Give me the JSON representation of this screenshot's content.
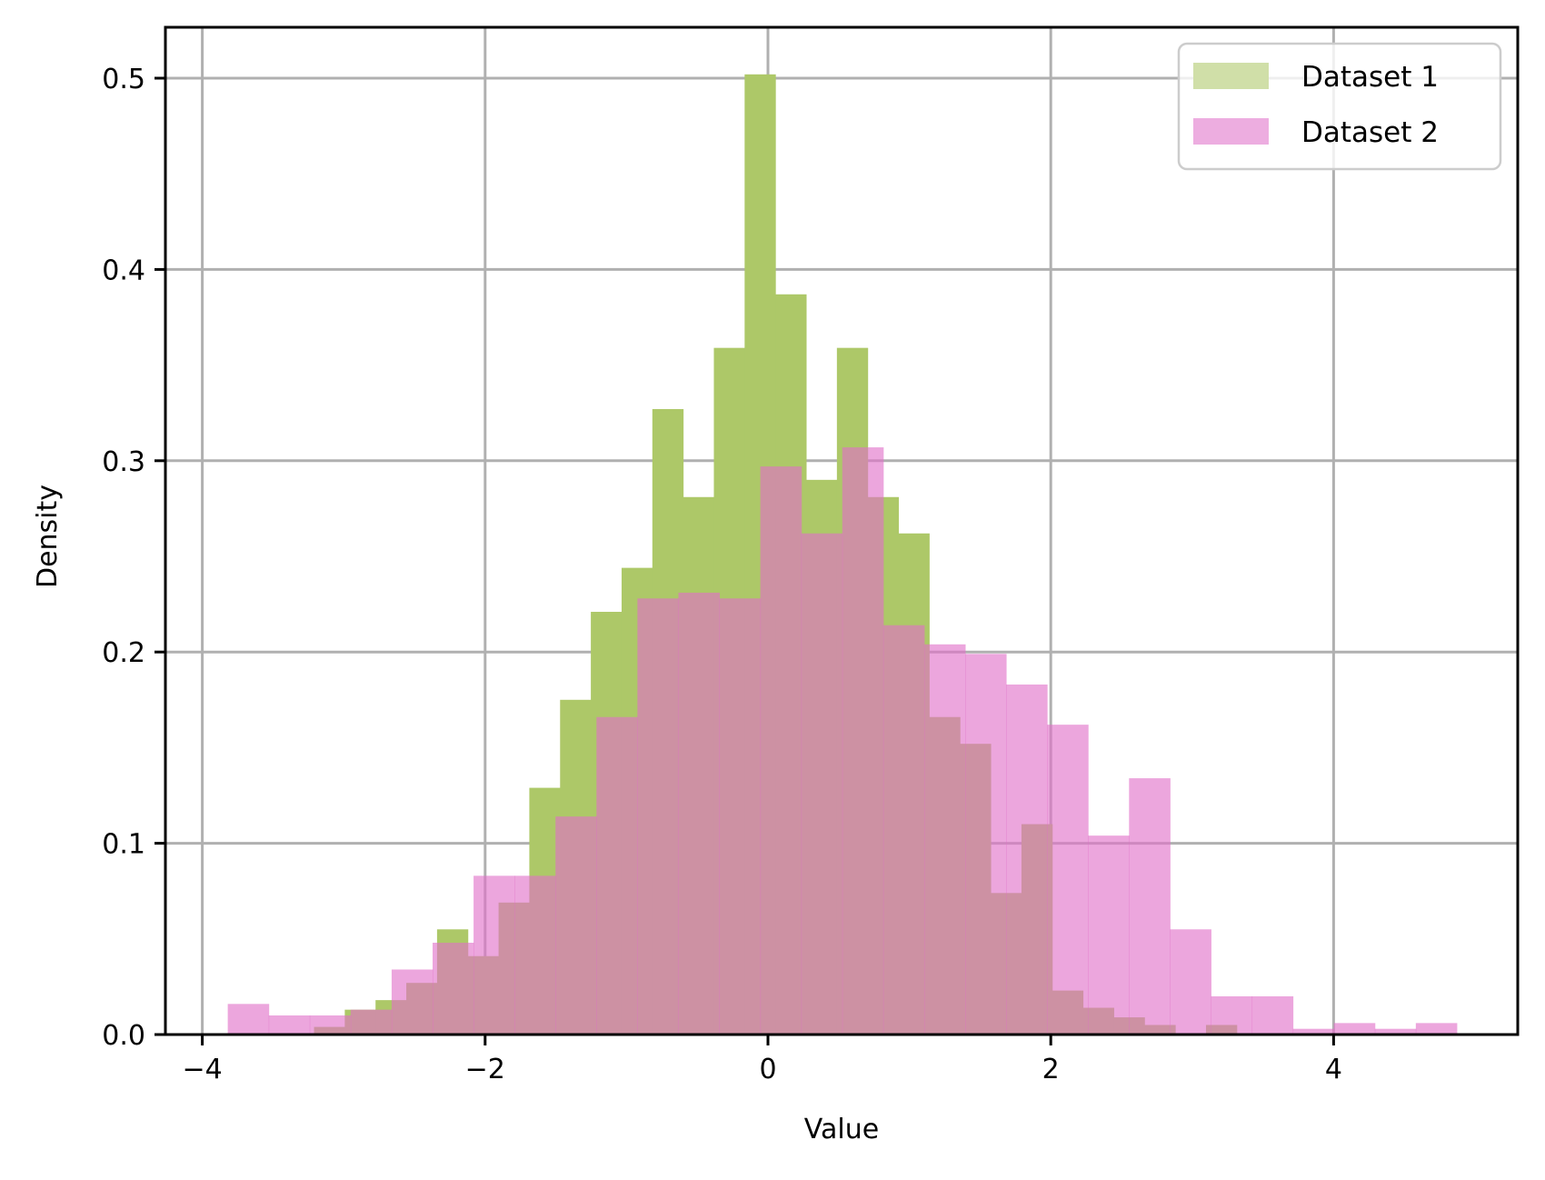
{
  "chart_data": {
    "type": "histogram",
    "title": "",
    "xlabel": "Value",
    "ylabel": "Density",
    "xlim": [
      -4.25,
      5.3
    ],
    "ylim": [
      0,
      0.53
    ],
    "xticks": [
      -4,
      -2,
      0,
      2,
      4
    ],
    "xtick_labels": [
      "−4",
      "−2",
      "0",
      "2",
      "4"
    ],
    "yticks": [
      0.0,
      0.1,
      0.2,
      0.3,
      0.4,
      0.5
    ],
    "ytick_labels": [
      "0.0",
      "0.1",
      "0.2",
      "0.3",
      "0.4",
      "0.5"
    ],
    "grid": true,
    "legend_position": "upper right",
    "series": [
      {
        "name": "Dataset 1",
        "color": "#9ACD32",
        "alpha": 0.8,
        "bin_start": -3.21,
        "bin_width": 0.2175,
        "values": [
          0.004,
          0.013,
          0.018,
          0.027,
          0.055,
          0.041,
          0.069,
          0.129,
          0.175,
          0.221,
          0.244,
          0.327,
          0.281,
          0.359,
          0.502,
          0.387,
          0.29,
          0.359,
          0.281,
          0.262,
          0.166,
          0.152,
          0.074,
          0.11,
          0.023,
          0.014,
          0.009,
          0.005,
          0.0,
          0.005
        ]
      },
      {
        "name": "Dataset 2",
        "color": "#DA70D6",
        "alpha": 0.6,
        "bin_start": -3.82,
        "bin_width": 0.2897,
        "values": [
          0.016,
          0.01,
          0.01,
          0.013,
          0.034,
          0.048,
          0.083,
          0.083,
          0.114,
          0.166,
          0.228,
          0.231,
          0.228,
          0.297,
          0.262,
          0.307,
          0.214,
          0.204,
          0.199,
          0.183,
          0.162,
          0.104,
          0.134,
          0.055,
          0.02,
          0.02,
          0.003,
          0.006,
          0.003,
          0.006
        ]
      }
    ]
  },
  "colors": {
    "series1_fill": "#ADC868",
    "series2_fill": "#E070C8",
    "overlap_fill": "#D08AA8",
    "legend_swatch1": "#D0DFA8",
    "legend_swatch2": "#EDADE0",
    "grid": "#B0B0B0",
    "axis": "#000000"
  }
}
